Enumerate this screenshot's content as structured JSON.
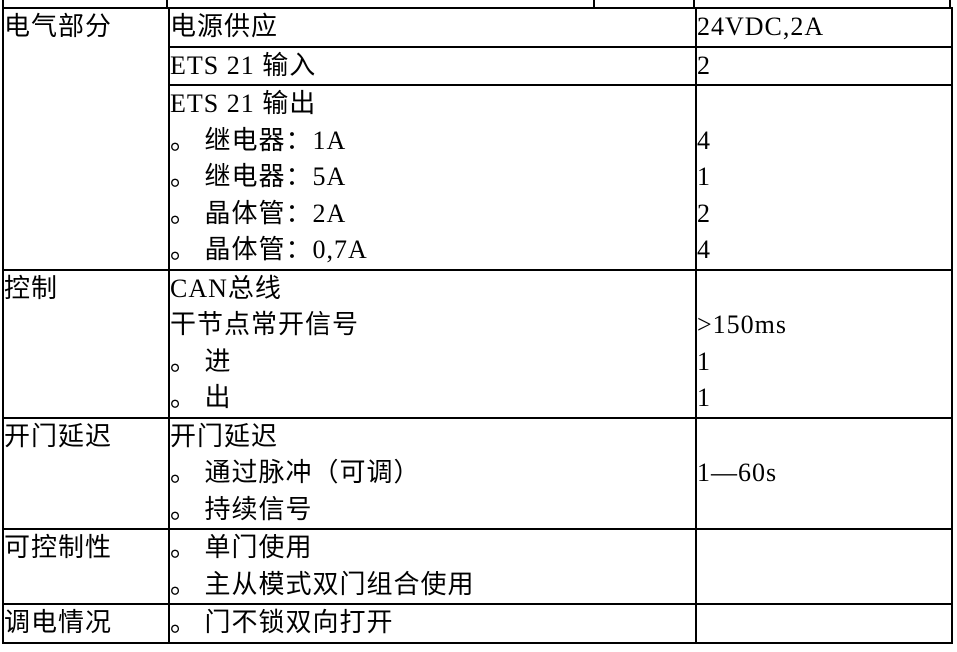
{
  "colors": {
    "background": "#ffffff",
    "border": "#000000",
    "text": "#000000"
  },
  "table": {
    "groups": [
      {
        "category": "电气部分",
        "rows": [
          {
            "lines": [
              "电源供应"
            ],
            "values": [
              "24VDC,2A"
            ]
          },
          {
            "lines": [
              "ETS 21 输入"
            ],
            "values": [
              "2"
            ]
          },
          {
            "lines": [
              "ETS 21 输出",
              "。 继电器：1A",
              "。 继电器：5A",
              "。 晶体管：2A",
              "。 晶体管：0,7A"
            ],
            "values": [
              "",
              "4",
              "1",
              "2",
              "4"
            ]
          }
        ]
      },
      {
        "category": "控制",
        "rows": [
          {
            "lines": [
              "CAN总线",
              "干节点常开信号",
              "。 进",
              "。 出"
            ],
            "values": [
              "",
              ">150ms",
              "1",
              "1"
            ]
          }
        ]
      },
      {
        "category": "开门延迟",
        "rows": [
          {
            "lines": [
              "开门延迟",
              "。 通过脉冲（可调）",
              "。 持续信号"
            ],
            "values": [
              "",
              "1—60s",
              ""
            ]
          }
        ]
      },
      {
        "category": "可控制性",
        "rows": [
          {
            "lines": [
              "。 单门使用",
              "。 主从模式双门组合使用"
            ],
            "values": [
              "",
              ""
            ]
          }
        ]
      },
      {
        "category": "调电情况",
        "rows": [
          {
            "lines": [
              "。 门不锁双向打开"
            ],
            "values": [
              ""
            ]
          }
        ]
      }
    ]
  }
}
